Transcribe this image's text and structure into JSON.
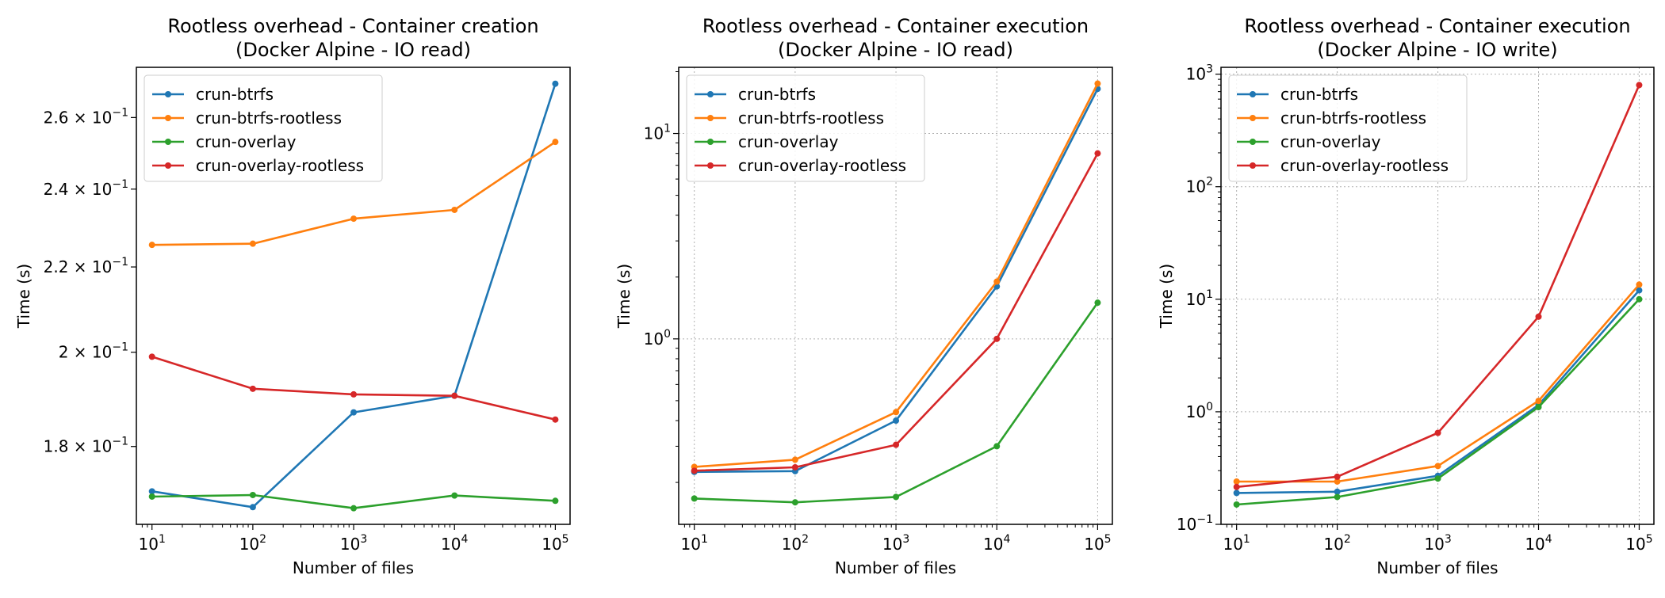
{
  "figure": {
    "colors": {
      "crun-btrfs": "#1f77b4",
      "crun-btrfs-rootless": "#ff7f0e",
      "crun-overlay": "#2ca02c",
      "crun-overlay-rootless": "#d62728"
    }
  },
  "chart_data": [
    {
      "type": "line",
      "title": "Rootless overhead - Container creation",
      "subtitle": "(Docker Alpine - IO read)",
      "xlabel": "Number of files",
      "ylabel": "Time (s)",
      "xscale": "log",
      "yscale": "log",
      "xlim": [
        7,
        140000
      ],
      "ylim": [
        0.165,
        0.275
      ],
      "grid": false,
      "legend": "upper-left",
      "x": [
        10,
        100,
        1000,
        10000,
        100000
      ],
      "x_ticks": [
        10,
        100,
        1000,
        10000,
        100000
      ],
      "x_tick_labels": [
        {
          "base": "10",
          "exp": "1"
        },
        {
          "base": "10",
          "exp": "2"
        },
        {
          "base": "10",
          "exp": "3"
        },
        {
          "base": "10",
          "exp": "4"
        },
        {
          "base": "10",
          "exp": "5"
        }
      ],
      "y_ticks": [
        0.18,
        0.2,
        0.22,
        0.24,
        0.26
      ],
      "y_tick_labels": [
        {
          "base": "1.8 × 10",
          "exp": "−1"
        },
        {
          "base": "2 × 10",
          "exp": "−1"
        },
        {
          "base": "2.2 × 10",
          "exp": "−1"
        },
        {
          "base": "2.4 × 10",
          "exp": "−1"
        },
        {
          "base": "2.6 × 10",
          "exp": "−1"
        }
      ],
      "series": [
        {
          "name": "crun-btrfs",
          "values": [
            0.1712,
            0.1682,
            0.187,
            0.1905,
            0.27
          ]
        },
        {
          "name": "crun-btrfs-rootless",
          "values": [
            0.2255,
            0.2258,
            0.2322,
            0.2345,
            0.253
          ]
        },
        {
          "name": "crun-overlay",
          "values": [
            0.1702,
            0.1705,
            0.168,
            0.1704,
            0.1694
          ]
        },
        {
          "name": "crun-overlay-rootless",
          "values": [
            0.199,
            0.192,
            0.1908,
            0.1905,
            0.1855
          ]
        }
      ]
    },
    {
      "type": "line",
      "title": "Rootless overhead - Container execution",
      "subtitle": "(Docker Alpine - IO read)",
      "xlabel": "Number of files",
      "ylabel": "Time (s)",
      "xscale": "log",
      "yscale": "log",
      "xlim": [
        7,
        140000
      ],
      "ylim": [
        0.125,
        21
      ],
      "grid": true,
      "legend": "upper-left",
      "x": [
        10,
        100,
        1000,
        10000,
        100000
      ],
      "x_ticks": [
        10,
        100,
        1000,
        10000,
        100000
      ],
      "x_tick_labels": [
        {
          "base": "10",
          "exp": "1"
        },
        {
          "base": "10",
          "exp": "2"
        },
        {
          "base": "10",
          "exp": "3"
        },
        {
          "base": "10",
          "exp": "4"
        },
        {
          "base": "10",
          "exp": "5"
        }
      ],
      "y_ticks": [
        1,
        10
      ],
      "y_tick_labels": [
        {
          "base": "10",
          "exp": "0"
        },
        {
          "base": "10",
          "exp": "1"
        }
      ],
      "series": [
        {
          "name": "crun-btrfs",
          "values": [
            0.225,
            0.227,
            0.4,
            1.8,
            16.5
          ]
        },
        {
          "name": "crun-btrfs-rootless",
          "values": [
            0.238,
            0.258,
            0.44,
            1.9,
            17.5
          ]
        },
        {
          "name": "crun-overlay",
          "values": [
            0.167,
            0.16,
            0.17,
            0.3,
            1.5
          ]
        },
        {
          "name": "crun-overlay-rootless",
          "values": [
            0.228,
            0.237,
            0.305,
            1.0,
            8.0
          ]
        }
      ]
    },
    {
      "type": "line",
      "title": "Rootless overhead - Container execution",
      "subtitle": "(Docker Alpine - IO write)",
      "xlabel": "Number of files",
      "ylabel": "Time (s)",
      "xscale": "log",
      "yscale": "log",
      "xlim": [
        7,
        140000
      ],
      "ylim": [
        0.1,
        1150
      ],
      "grid": true,
      "legend": "upper-left",
      "x": [
        10,
        100,
        1000,
        10000,
        100000
      ],
      "x_ticks": [
        10,
        100,
        1000,
        10000,
        100000
      ],
      "x_tick_labels": [
        {
          "base": "10",
          "exp": "1"
        },
        {
          "base": "10",
          "exp": "2"
        },
        {
          "base": "10",
          "exp": "3"
        },
        {
          "base": "10",
          "exp": "4"
        },
        {
          "base": "10",
          "exp": "5"
        }
      ],
      "y_ticks": [
        0.1,
        1,
        10,
        100,
        1000
      ],
      "y_tick_labels": [
        {
          "base": "10",
          "exp": "−1"
        },
        {
          "base": "10",
          "exp": "0"
        },
        {
          "base": "10",
          "exp": "1"
        },
        {
          "base": "10",
          "exp": "2"
        },
        {
          "base": "10",
          "exp": "3"
        }
      ],
      "series": [
        {
          "name": "crun-btrfs",
          "values": [
            0.19,
            0.195,
            0.27,
            1.15,
            12.0
          ]
        },
        {
          "name": "crun-btrfs-rootless",
          "values": [
            0.24,
            0.24,
            0.33,
            1.25,
            13.5
          ]
        },
        {
          "name": "crun-overlay",
          "values": [
            0.15,
            0.175,
            0.255,
            1.1,
            10.0
          ]
        },
        {
          "name": "crun-overlay-rootless",
          "values": [
            0.215,
            0.265,
            0.65,
            7.0,
            800
          ]
        }
      ]
    }
  ]
}
